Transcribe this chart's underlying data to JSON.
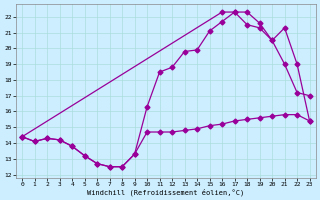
{
  "xlabel": "Windchill (Refroidissement éolien,°C)",
  "bg_color": "#cceeff",
  "line_color": "#990099",
  "xlim": [
    -0.5,
    23.5
  ],
  "ylim": [
    11.8,
    22.8
  ],
  "yticks": [
    12,
    13,
    14,
    15,
    16,
    17,
    18,
    19,
    20,
    21,
    22
  ],
  "xticks": [
    0,
    1,
    2,
    3,
    4,
    5,
    6,
    7,
    8,
    9,
    10,
    11,
    12,
    13,
    14,
    15,
    16,
    17,
    18,
    19,
    20,
    21,
    22,
    23
  ],
  "series1_x": [
    0,
    1,
    2,
    3,
    4,
    5,
    6,
    7,
    8,
    9,
    10,
    11,
    12,
    13,
    14,
    15,
    16,
    17,
    18,
    19,
    20,
    21,
    22,
    23
  ],
  "series1_y": [
    14.4,
    14.1,
    14.3,
    14.2,
    13.8,
    13.2,
    12.7,
    12.5,
    12.5,
    13.3,
    14.7,
    14.7,
    14.7,
    14.8,
    14.9,
    15.1,
    15.2,
    15.4,
    15.5,
    15.6,
    15.7,
    15.8,
    15.8,
    15.4
  ],
  "series2_x": [
    0,
    1,
    2,
    3,
    4,
    5,
    6,
    7,
    8,
    9,
    10,
    11,
    12,
    13,
    14,
    15,
    16,
    17,
    18,
    19,
    20,
    21,
    22,
    23
  ],
  "series2_y": [
    14.4,
    14.1,
    14.3,
    14.2,
    13.8,
    13.2,
    12.7,
    12.5,
    12.5,
    13.3,
    16.3,
    18.5,
    18.8,
    19.8,
    19.9,
    21.1,
    21.7,
    22.3,
    22.3,
    21.6,
    20.5,
    19.0,
    17.2,
    17.0
  ],
  "series3_x": [
    0,
    16,
    17,
    18,
    19,
    20,
    21,
    22,
    23
  ],
  "series3_y": [
    14.4,
    22.3,
    22.3,
    21.5,
    21.3,
    20.5,
    21.3,
    19.0,
    15.4
  ],
  "grid_color": "#aadddd",
  "markersize": 2.5,
  "linewidth": 0.9
}
